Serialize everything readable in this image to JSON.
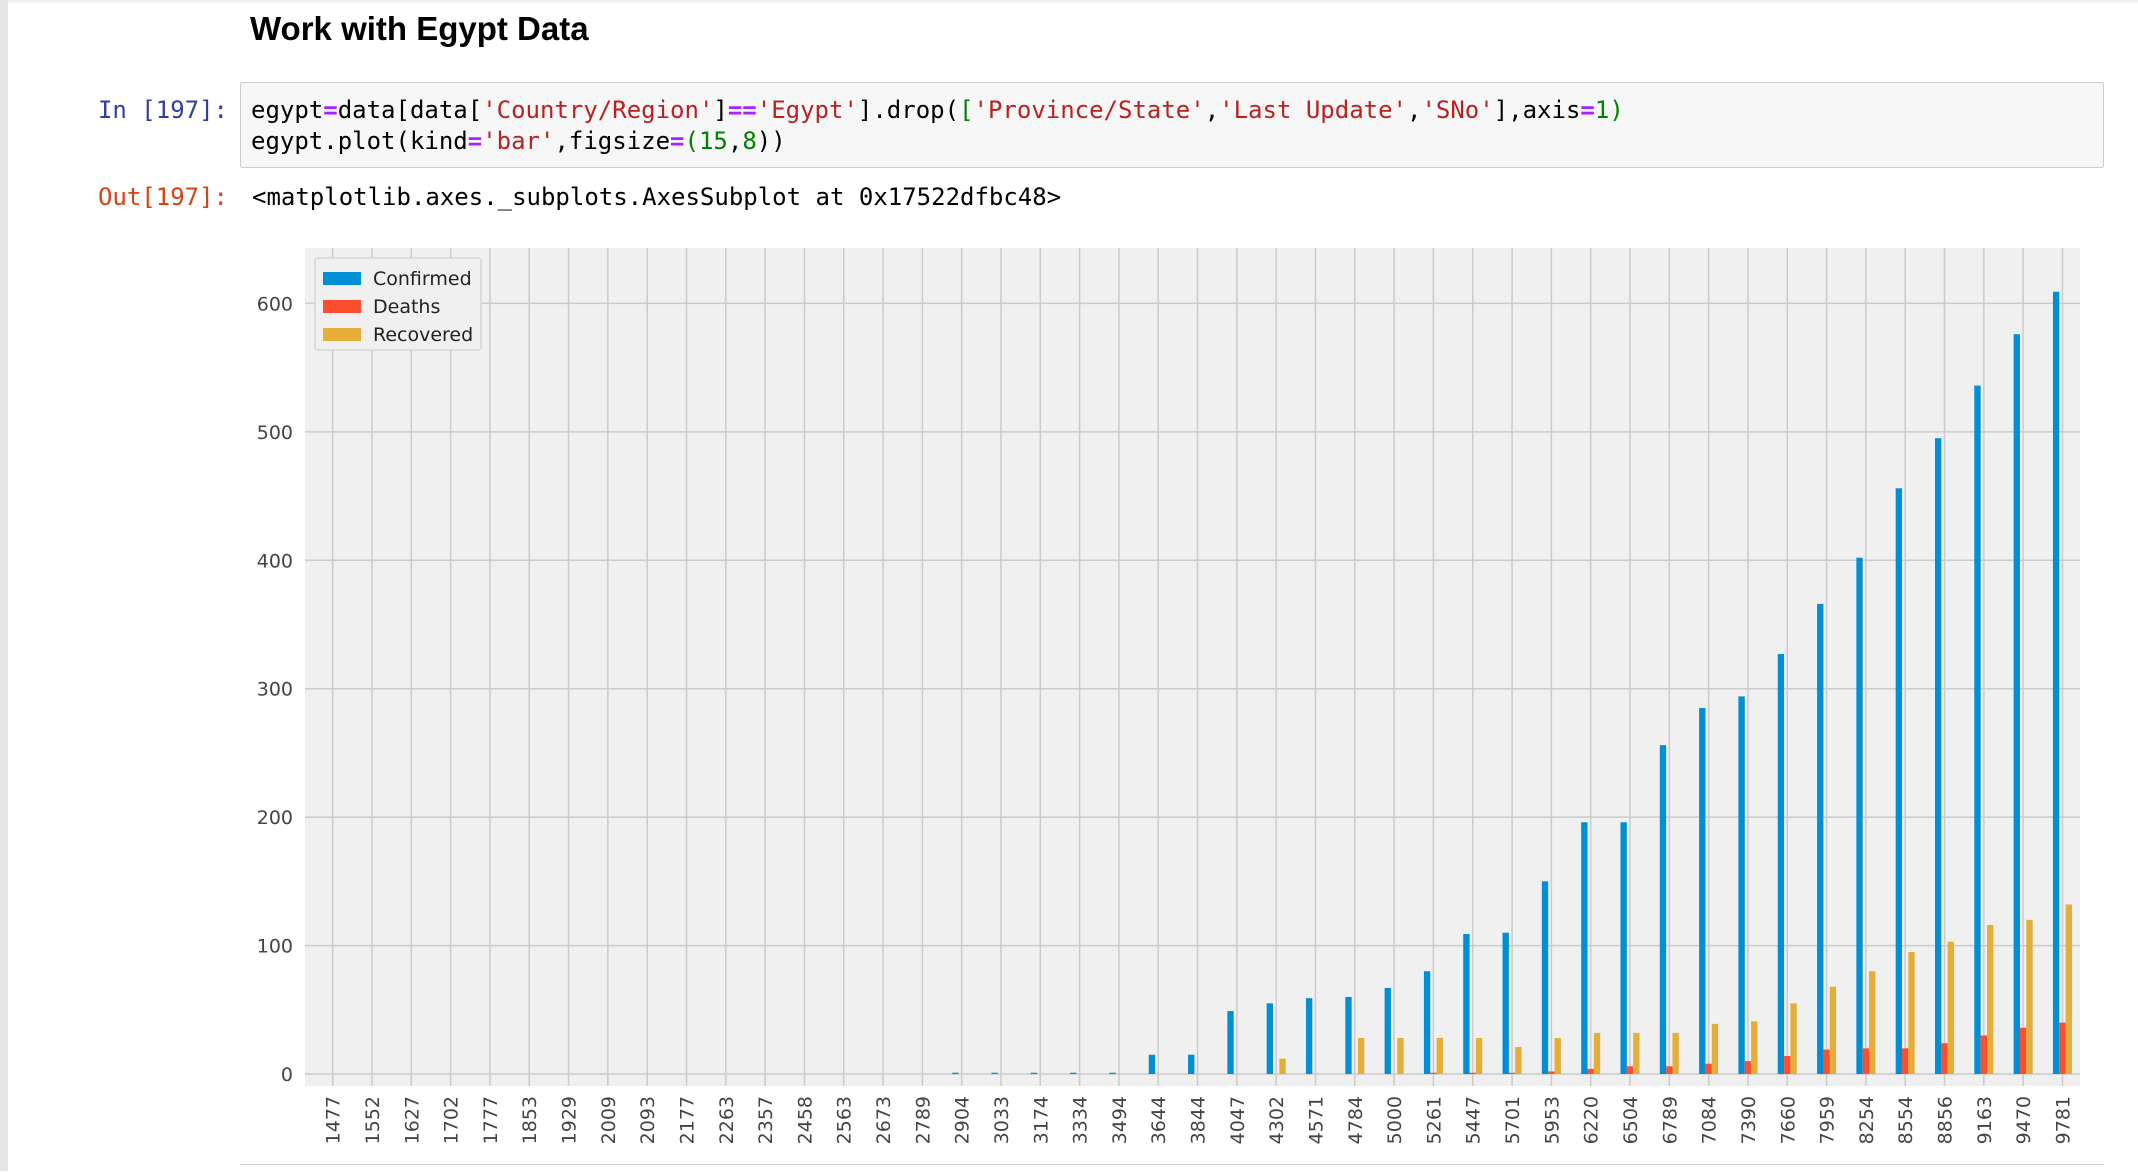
{
  "heading": "Work with Egypt Data",
  "cell": {
    "in_prompt": "In [197]:",
    "out_prompt": "Out[197]:",
    "code_line1": {
      "a": "egypt",
      "b": "=",
      "c": "data[data[",
      "d": "'Country/Region'",
      "e": "]",
      "f": "==",
      "g": "'Egypt'",
      "h": "].drop(",
      "i": "[",
      "j": "'Province/State'",
      "k": ",",
      "l": "'Last Update'",
      "m": ",",
      "n": "'SNo'",
      "o": "],axis",
      "p": "=",
      "q": "1",
      "r": ")"
    },
    "code_line2": {
      "a": "egypt.plot(kind",
      "b": "=",
      "c": "'bar'",
      "d": ",figsize",
      "e": "=",
      "f": "(",
      "g": "15",
      "h": ",",
      "i": "8",
      "j": "))"
    },
    "output_text": "<matplotlib.axes._subplots.AxesSubplot at 0x17522dfbc48>"
  },
  "chart_data": {
    "type": "bar",
    "title": "",
    "xlabel": "",
    "ylabel": "",
    "ylim": [
      0,
      640
    ],
    "yticks": [
      0,
      100,
      200,
      300,
      400,
      500,
      600
    ],
    "grid": true,
    "legend_position": "top-left",
    "categories": [
      "1477",
      "1552",
      "1627",
      "1702",
      "1777",
      "1853",
      "1929",
      "2009",
      "2093",
      "2177",
      "2263",
      "2357",
      "2458",
      "2563",
      "2673",
      "2789",
      "2904",
      "3033",
      "3174",
      "3334",
      "3494",
      "3644",
      "3844",
      "4047",
      "4302",
      "4571",
      "4784",
      "5000",
      "5261",
      "5447",
      "5701",
      "5953",
      "6220",
      "6504",
      "6789",
      "7084",
      "7390",
      "7660",
      "7959",
      "8254",
      "8554",
      "8856",
      "9163",
      "9470",
      "9781"
    ],
    "series": [
      {
        "name": "Confirmed",
        "color": "#008fd5",
        "values": [
          0,
          0,
          0,
          0,
          0,
          0,
          0,
          0,
          0,
          0,
          0,
          0,
          0,
          0,
          0,
          0,
          1,
          1,
          1,
          1,
          1,
          15,
          15,
          49,
          55,
          59,
          60,
          67,
          80,
          109,
          110,
          150,
          196,
          196,
          256,
          285,
          294,
          327,
          366,
          402,
          456,
          495,
          536,
          576,
          609
        ]
      },
      {
        "name": "Deaths",
        "color": "#fc4f30",
        "values": [
          0,
          0,
          0,
          0,
          0,
          0,
          0,
          0,
          0,
          0,
          0,
          0,
          0,
          0,
          0,
          0,
          0,
          0,
          0,
          0,
          0,
          0,
          0,
          0,
          0,
          0,
          0,
          0,
          1,
          1,
          1,
          2,
          4,
          6,
          6,
          8,
          10,
          14,
          19,
          20,
          20,
          24,
          30,
          36,
          40
        ]
      },
      {
        "name": "Recovered",
        "color": "#e5ae38",
        "values": [
          0,
          0,
          0,
          0,
          0,
          0,
          0,
          0,
          0,
          0,
          0,
          0,
          0,
          0,
          0,
          0,
          0,
          0,
          0,
          0,
          0,
          0,
          0,
          0,
          12,
          0,
          28,
          28,
          28,
          28,
          21,
          28,
          32,
          32,
          32,
          39,
          41,
          55,
          68,
          80,
          95,
          103,
          116,
          120,
          132
        ]
      }
    ]
  }
}
